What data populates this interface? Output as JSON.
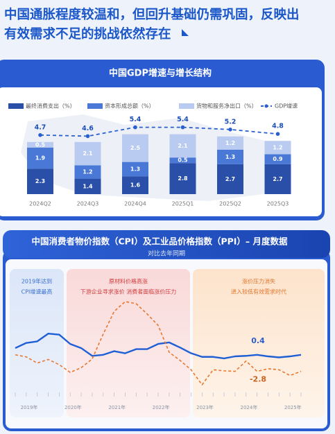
{
  "header": {
    "title_lines": [
      "中国通胀程度较温和，但回升基础仍需巩固，反映出",
      "有效需求不足的挑战依然存在"
    ]
  },
  "chart_data": [
    {
      "type": "stacked-bar-line",
      "title": "中国GDP增速与增长结构",
      "categories": [
        "2024Q2",
        "2024Q3",
        "2024Q4",
        "2025Q1",
        "2025Q2",
        "2025Q3"
      ],
      "series": [
        {
          "name": "最终消费支出（%）",
          "color": "#2a4fa8",
          "values": [
            2.3,
            1.4,
            1.6,
            2.8,
            2.7,
            2.7
          ]
        },
        {
          "name": "资本形成总额（%）",
          "color": "#4a78d6",
          "values": [
            1.9,
            1.2,
            1.3,
            0.5,
            1.3,
            0.9
          ]
        },
        {
          "name": "货物和服务净出口（%）",
          "color": "#b9cbf1",
          "values": [
            0.5,
            2.1,
            2.5,
            2.1,
            1.2,
            1.2
          ]
        },
        {
          "name": "GDP增速",
          "color": "#2a5fd0",
          "type": "line",
          "values": [
            4.7,
            4.6,
            5.4,
            5.4,
            5.2,
            4.8
          ]
        }
      ]
    },
    {
      "type": "line",
      "title": "中国消费者物价指数（CPI）及工业品价格指数（PPI）– 月度数据",
      "subtitle": "对比去年同期",
      "annotations": [
        [
          "2019年达到",
          "CPI增速最高"
        ],
        [
          "原材料价格高涨",
          "下游企业寻求涨价 消费者面临涨价压力"
        ],
        [
          "涨价压力消失",
          "进入较低有效需求时代"
        ]
      ],
      "x": [
        "2019年",
        null,
        null,
        null,
        "2020年",
        null,
        null,
        null,
        "2021年",
        null,
        null,
        null,
        "2022年",
        null,
        null,
        null,
        "2023年",
        null,
        null,
        null,
        "2024年",
        null,
        null,
        null,
        "2025年",
        null,
        null
      ],
      "series": [
        {
          "name": "CPI",
          "color": "#1f5fd6",
          "values": [
            1.7,
            2.7,
            3.0,
            4.5,
            4.3,
            2.5,
            1.7,
            0.2,
            0.4,
            1.1,
            0.7,
            1.5,
            1.5,
            2.5,
            2.8,
            1.8,
            0.7,
            0.0,
            0.0,
            -0.3,
            0.1,
            0.2,
            0.4,
            0.1,
            -0.1,
            0.1,
            0.4
          ]
        },
        {
          "name": "PPI",
          "color": "#e8772e",
          "values": [
            0.4,
            0.0,
            -1.2,
            -0.5,
            -1.5,
            -3.0,
            -2.1,
            -0.4,
            4.4,
            8.8,
            10.7,
            10.3,
            8.3,
            6.1,
            0.9,
            -0.7,
            -2.5,
            -5.4,
            -2.5,
            -2.7,
            -2.8,
            -0.8,
            -2.8,
            -2.3,
            -2.5,
            -3.6,
            -2.8
          ]
        }
      ]
    }
  ]
}
